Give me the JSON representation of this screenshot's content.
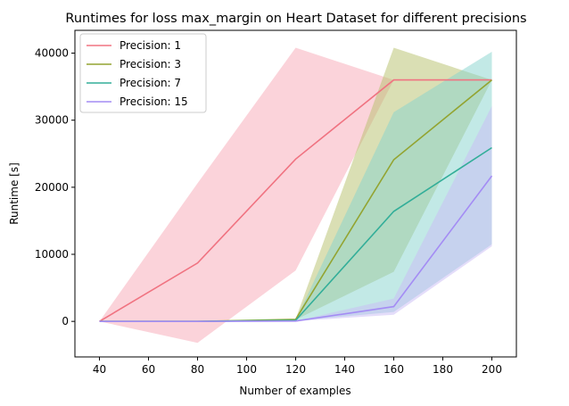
{
  "chart_data": {
    "type": "line",
    "title": "Runtimes for loss max_margin on Heart Dataset for different precisions",
    "xlabel": "Number of examples",
    "ylabel": "Runtime [s]",
    "x": [
      40,
      80,
      120,
      160,
      200
    ],
    "xlim": [
      30,
      210
    ],
    "ylim": [
      -5300,
      43400
    ],
    "xticks": [
      40,
      60,
      80,
      100,
      120,
      140,
      160,
      180,
      200
    ],
    "yticks": [
      0,
      10000,
      20000,
      30000,
      40000
    ],
    "grid": false,
    "legend_position": "upper-left",
    "series": [
      {
        "name": "Precision: 1",
        "color": "#f07381",
        "band_color": "#f7a8b5",
        "values": [
          0,
          8700,
          24200,
          36000,
          36000
        ],
        "lower": [
          0,
          -3200,
          7600,
          36000,
          36000
        ],
        "upper": [
          0,
          20600,
          40800,
          36000,
          36000
        ]
      },
      {
        "name": "Precision: 3",
        "color": "#93a431",
        "band_color": "#b5bf6a",
        "values": [
          0,
          0,
          300,
          24100,
          36000
        ],
        "lower": [
          0,
          0,
          250,
          7400,
          36000
        ],
        "upper": [
          0,
          0,
          350,
          40800,
          36000
        ]
      },
      {
        "name": "Precision: 7",
        "color": "#33ae99",
        "band_color": "#86d3cd",
        "values": [
          0,
          0,
          150,
          16400,
          25900
        ],
        "lower": [
          0,
          0,
          100,
          1400,
          11500
        ],
        "upper": [
          0,
          0,
          200,
          31200,
          40200
        ]
      },
      {
        "name": "Precision: 15",
        "color": "#a48cf4",
        "band_color": "#c9bcf6",
        "values": [
          0,
          0,
          50,
          2200,
          21700
        ],
        "lower": [
          0,
          0,
          40,
          1000,
          11200
        ],
        "upper": [
          0,
          0,
          60,
          3400,
          32100
        ]
      }
    ]
  }
}
